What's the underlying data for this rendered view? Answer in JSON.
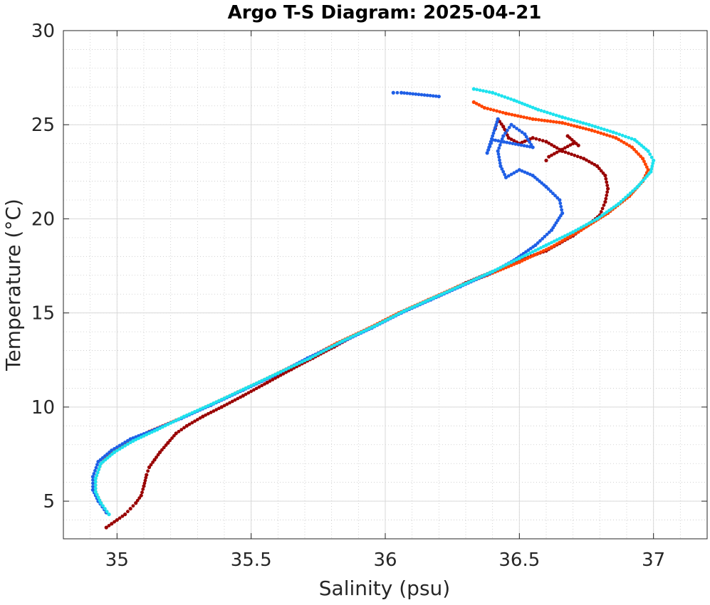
{
  "chart_data": {
    "type": "scatter",
    "title": "Argo T-S Diagram: 2025-04-21",
    "xlabel": "Salinity (psu)",
    "ylabel": "Temperature (°C)",
    "xlim": [
      34.8,
      37.2
    ],
    "ylim": [
      3,
      30
    ],
    "xticks": [
      35,
      35.5,
      36,
      36.5,
      37
    ],
    "xtick_labels": [
      "35",
      "35.5",
      "36",
      "36.5",
      "37"
    ],
    "yticks": [
      5,
      10,
      15,
      20,
      25,
      30
    ],
    "ytick_labels": [
      "5",
      "10",
      "15",
      "20",
      "25",
      "30"
    ],
    "grid": "major and minor",
    "legend": "none",
    "series": [
      {
        "color": "#990000",
        "points": [
          [
            34.96,
            3.6
          ],
          [
            34.98,
            3.8
          ],
          [
            35.0,
            4.0
          ],
          [
            35.03,
            4.3
          ],
          [
            35.05,
            4.6
          ],
          [
            35.07,
            4.9
          ],
          [
            35.09,
            5.3
          ],
          [
            35.1,
            5.8
          ],
          [
            35.11,
            6.4
          ],
          [
            35.12,
            6.8
          ],
          [
            35.14,
            7.2
          ],
          [
            35.16,
            7.6
          ],
          [
            35.19,
            8.1
          ],
          [
            35.22,
            8.6
          ],
          [
            35.26,
            9.0
          ],
          [
            35.32,
            9.5
          ],
          [
            35.39,
            10.0
          ],
          [
            35.47,
            10.6
          ],
          [
            35.56,
            11.3
          ],
          [
            35.65,
            12.0
          ],
          [
            35.73,
            12.6
          ],
          [
            35.81,
            13.2
          ],
          [
            35.9,
            13.9
          ],
          [
            36.0,
            14.6
          ],
          [
            36.1,
            15.3
          ],
          [
            36.2,
            15.9
          ],
          [
            36.3,
            16.6
          ],
          [
            36.4,
            17.2
          ],
          [
            36.5,
            17.8
          ],
          [
            36.6,
            18.3
          ],
          [
            36.65,
            18.7
          ],
          [
            36.7,
            19.1
          ],
          [
            36.75,
            19.6
          ],
          [
            36.8,
            20.2
          ],
          [
            36.82,
            20.9
          ],
          [
            36.83,
            21.6
          ],
          [
            36.82,
            22.3
          ],
          [
            36.79,
            22.8
          ],
          [
            36.74,
            23.2
          ],
          [
            36.66,
            23.6
          ],
          [
            36.6,
            24.1
          ],
          [
            36.55,
            24.3
          ],
          [
            36.5,
            24.0
          ],
          [
            36.46,
            24.3
          ],
          [
            36.44,
            24.9
          ],
          [
            36.42,
            25.3
          ],
          [
            36.41,
            24.8
          ],
          [
            36.68,
            24.4
          ],
          [
            36.72,
            23.9
          ],
          [
            36.7,
            24.0
          ],
          [
            36.61,
            23.3
          ],
          [
            36.6,
            23.1
          ]
        ]
      },
      {
        "color": "#ff4500",
        "points": [
          [
            34.96,
            4.4
          ],
          [
            34.94,
            4.9
          ],
          [
            34.92,
            5.5
          ],
          [
            34.92,
            6.2
          ],
          [
            34.94,
            7.0
          ],
          [
            34.98,
            7.6
          ],
          [
            35.04,
            8.1
          ],
          [
            35.12,
            8.7
          ],
          [
            35.22,
            9.3
          ],
          [
            35.33,
            10.0
          ],
          [
            35.45,
            10.8
          ],
          [
            35.57,
            11.6
          ],
          [
            35.7,
            12.5
          ],
          [
            35.82,
            13.4
          ],
          [
            35.94,
            14.2
          ],
          [
            36.05,
            15.0
          ],
          [
            36.16,
            15.7
          ],
          [
            36.27,
            16.4
          ],
          [
            36.38,
            17.0
          ],
          [
            36.5,
            17.7
          ],
          [
            36.62,
            18.5
          ],
          [
            36.73,
            19.4
          ],
          [
            36.83,
            20.3
          ],
          [
            36.91,
            21.2
          ],
          [
            36.96,
            22.0
          ],
          [
            36.98,
            22.6
          ],
          [
            36.96,
            23.2
          ],
          [
            36.92,
            23.8
          ],
          [
            36.86,
            24.3
          ],
          [
            36.77,
            24.7
          ],
          [
            36.66,
            25.1
          ],
          [
            36.55,
            25.3
          ],
          [
            36.45,
            25.6
          ],
          [
            36.37,
            25.9
          ],
          [
            36.33,
            26.2
          ]
        ]
      },
      {
        "color": "#1f5fe6",
        "points": [
          [
            34.96,
            4.4
          ],
          [
            34.93,
            5.0
          ],
          [
            34.91,
            5.6
          ],
          [
            34.91,
            6.3
          ],
          [
            34.93,
            7.1
          ],
          [
            34.98,
            7.7
          ],
          [
            35.05,
            8.3
          ],
          [
            35.14,
            8.8
          ],
          [
            35.24,
            9.4
          ],
          [
            35.35,
            10.1
          ],
          [
            35.47,
            10.9
          ],
          [
            35.59,
            11.7
          ],
          [
            35.71,
            12.6
          ],
          [
            35.83,
            13.4
          ],
          [
            35.95,
            14.2
          ],
          [
            36.06,
            15.0
          ],
          [
            36.17,
            15.7
          ],
          [
            36.28,
            16.4
          ],
          [
            36.39,
            17.1
          ],
          [
            36.48,
            17.8
          ],
          [
            36.56,
            18.6
          ],
          [
            36.62,
            19.4
          ],
          [
            36.66,
            20.3
          ],
          [
            36.65,
            21.0
          ],
          [
            36.6,
            21.7
          ],
          [
            36.55,
            22.3
          ],
          [
            36.5,
            22.6
          ],
          [
            36.45,
            22.2
          ],
          [
            36.43,
            22.8
          ],
          [
            36.42,
            23.6
          ],
          [
            36.44,
            24.4
          ],
          [
            36.47,
            25.0
          ],
          [
            36.52,
            24.5
          ],
          [
            36.55,
            23.8
          ],
          [
            36.4,
            24.2
          ],
          [
            36.38,
            23.5
          ],
          [
            36.42,
            25.3
          ],
          [
            36.2,
            26.5
          ],
          [
            36.06,
            26.7
          ],
          [
            36.03,
            26.7
          ]
        ]
      },
      {
        "color": "#1de2ee",
        "points": [
          [
            34.97,
            4.3
          ],
          [
            34.94,
            4.9
          ],
          [
            34.92,
            5.5
          ],
          [
            34.92,
            6.2
          ],
          [
            34.94,
            7.0
          ],
          [
            34.99,
            7.6
          ],
          [
            35.06,
            8.2
          ],
          [
            35.15,
            8.8
          ],
          [
            35.25,
            9.5
          ],
          [
            35.36,
            10.2
          ],
          [
            35.48,
            11.0
          ],
          [
            35.6,
            11.8
          ],
          [
            35.72,
            12.6
          ],
          [
            35.84,
            13.5
          ],
          [
            35.96,
            14.3
          ],
          [
            36.07,
            15.1
          ],
          [
            36.18,
            15.8
          ],
          [
            36.29,
            16.5
          ],
          [
            36.4,
            17.2
          ],
          [
            36.5,
            17.9
          ],
          [
            36.6,
            18.6
          ],
          [
            36.7,
            19.3
          ],
          [
            36.79,
            20.0
          ],
          [
            36.87,
            20.8
          ],
          [
            36.94,
            21.7
          ],
          [
            36.99,
            22.5
          ],
          [
            37.0,
            23.1
          ],
          [
            36.98,
            23.6
          ],
          [
            36.93,
            24.2
          ],
          [
            36.85,
            24.6
          ],
          [
            36.76,
            25.0
          ],
          [
            36.66,
            25.4
          ],
          [
            36.57,
            25.8
          ],
          [
            36.48,
            26.3
          ],
          [
            36.4,
            26.7
          ],
          [
            36.33,
            26.9
          ]
        ]
      }
    ]
  }
}
